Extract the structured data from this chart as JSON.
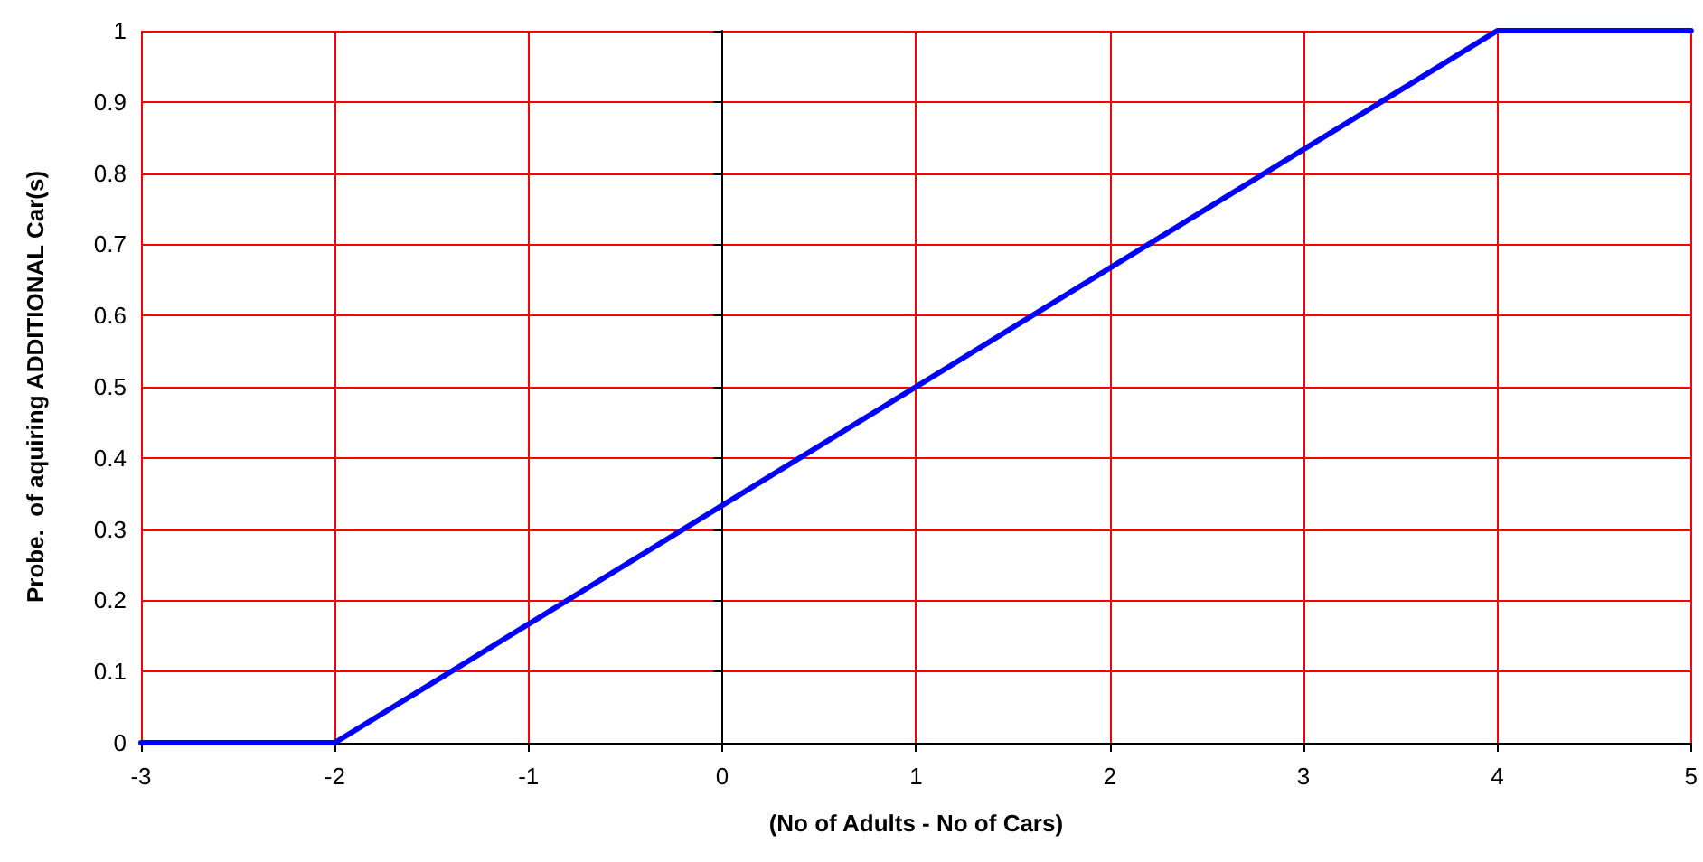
{
  "chart_data": {
    "type": "line",
    "xlabel": "(No of Adults - No of Cars)",
    "ylabel": "Probe.  of aquiring ADDITIONAL Car(s)",
    "series": [
      {
        "color": "#0000ff",
        "x": [
          -3,
          -2,
          4,
          5
        ],
        "values": [
          0,
          0,
          1,
          1
        ]
      }
    ],
    "xlim": [
      -3,
      5
    ],
    "xticks": [
      -3,
      -2,
      -1,
      0,
      1,
      2,
      3,
      4,
      5
    ],
    "ylim": [
      0,
      1
    ],
    "yticks": [
      0,
      0.1,
      0.2,
      0.3,
      0.4,
      0.5,
      0.6,
      0.7,
      0.8,
      0.9,
      1
    ],
    "grid": true,
    "marker": "none",
    "line_style": "solid"
  }
}
